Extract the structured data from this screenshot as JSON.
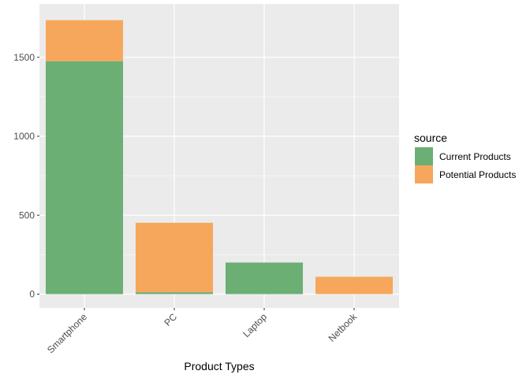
{
  "chart_data": {
    "type": "bar",
    "stacked": true,
    "categories": [
      "Smartphone",
      "PC",
      "Laptop",
      "Netbook"
    ],
    "series": [
      {
        "name": "Current Products",
        "color": "#6BAF75",
        "values": [
          1475,
          12,
          200,
          0
        ]
      },
      {
        "name": "Potential Products",
        "color": "#F6A75C",
        "values": [
          260,
          440,
          0,
          110
        ]
      }
    ],
    "xlabel": "Product Types",
    "ylabel": "",
    "ylim": [
      0,
      1735
    ],
    "yticks": [
      0,
      500,
      1000,
      1500
    ],
    "legend_title": "source",
    "legend_position": "right",
    "grid": true,
    "panel_background": "#EBEBEB",
    "x_tick_rotation_deg": 45
  }
}
